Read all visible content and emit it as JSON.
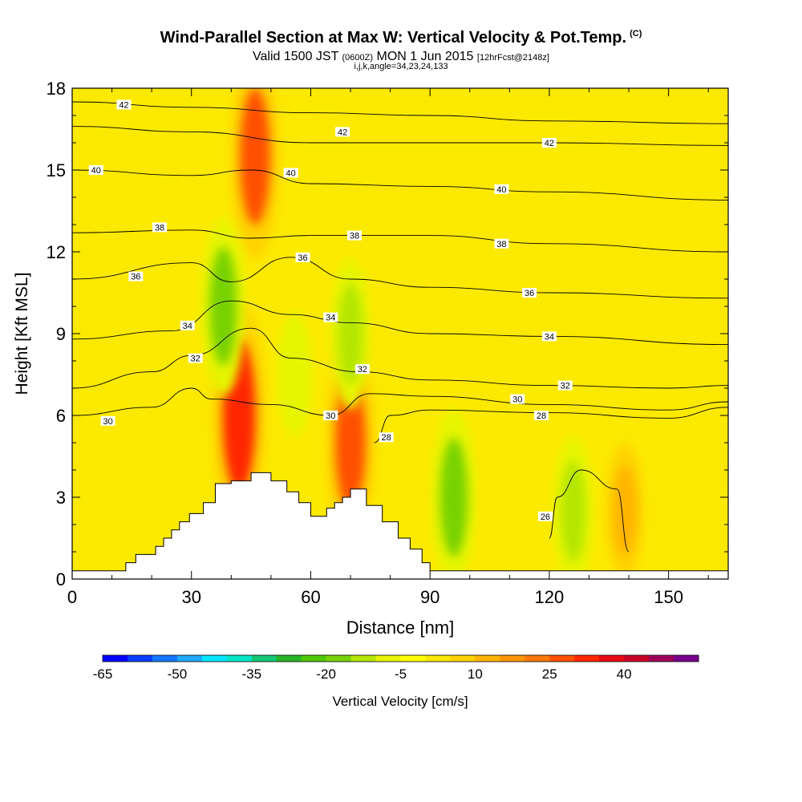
{
  "header": {
    "title": "Wind-Parallel Section at Max W: Vertical Velocity & Pot.Temp.",
    "copyright": "(C)",
    "subtitle_main": "Valid 1500 JST",
    "subtitle_utc": "(0600Z)",
    "subtitle_date": "MON 1 Jun 2015",
    "subtitle_fcst": "[12hrFcst@2148z]",
    "indices": "i,j,k,angle=34,23,24,133"
  },
  "chart_data": {
    "type": "heatmap",
    "xlabel": "Distance [nm]",
    "ylabel": "Height [Kft MSL]",
    "xlim": [
      0,
      165
    ],
    "ylim": [
      0,
      18
    ],
    "x_ticks": [
      "0",
      "30",
      "60",
      "90",
      "120",
      "150"
    ],
    "y_ticks": [
      "0",
      "3",
      "6",
      "9",
      "12",
      "15",
      "18"
    ],
    "colorbar": {
      "label": "Vertical Velocity [cm/s]",
      "range": [
        -65,
        55
      ],
      "step": 5,
      "tick_labels": [
        "-65",
        "-50",
        "-35",
        "-20",
        "-5",
        "10",
        "25",
        "40"
      ],
      "colors": [
        "#0000ff",
        "#0a3cff",
        "#1478ff",
        "#1eaaff",
        "#00e6ff",
        "#00e6c8",
        "#14c878",
        "#28b428",
        "#50c800",
        "#78d200",
        "#b4e600",
        "#e6f500",
        "#ffff00",
        "#fae600",
        "#ffd200",
        "#ffb400",
        "#ff9600",
        "#ff7800",
        "#ff5000",
        "#ff2800",
        "#e60a14",
        "#c80028",
        "#a0005a",
        "#78008c"
      ]
    },
    "terrain_kft": [
      [
        0,
        0.3
      ],
      [
        12,
        0.3
      ],
      [
        13.5,
        0.6
      ],
      [
        16,
        0.9
      ],
      [
        21,
        1.2
      ],
      [
        23,
        1.5
      ],
      [
        25,
        1.8
      ],
      [
        27,
        2.1
      ],
      [
        29.5,
        2.4
      ],
      [
        33,
        2.8
      ],
      [
        36,
        3.5
      ],
      [
        40,
        3.6
      ],
      [
        45,
        3.9
      ],
      [
        50,
        3.6
      ],
      [
        54,
        3.2
      ],
      [
        57,
        2.8
      ],
      [
        60,
        2.3
      ],
      [
        64,
        2.6
      ],
      [
        66,
        2.8
      ],
      [
        68,
        3.0
      ],
      [
        70,
        3.3
      ],
      [
        74,
        2.7
      ],
      [
        78,
        2.1
      ],
      [
        82,
        1.5
      ],
      [
        85,
        1.1
      ],
      [
        88,
        0.6
      ],
      [
        90,
        0.3
      ],
      [
        165,
        0.3
      ]
    ],
    "velocity_features": [
      {
        "x": 42,
        "y": 6.0,
        "value": 30
      },
      {
        "x": 46,
        "y": 15.5,
        "value": 25
      },
      {
        "x": 70,
        "y": 5.0,
        "value": 25
      },
      {
        "x": 38,
        "y": 10.0,
        "value": -20
      },
      {
        "x": 56,
        "y": 7.5,
        "value": -10
      },
      {
        "x": 70,
        "y": 9.0,
        "value": -15
      },
      {
        "x": 96,
        "y": 3.0,
        "value": -20
      },
      {
        "x": 126,
        "y": 2.5,
        "value": -15
      },
      {
        "x": 139,
        "y": 2.5,
        "value": 12
      }
    ],
    "theta_contours": [
      {
        "label": "42",
        "points": [
          [
            0,
            17.5
          ],
          [
            30,
            17.3
          ],
          [
            60,
            17.1
          ],
          [
            90,
            17.0
          ],
          [
            120,
            16.8
          ],
          [
            165,
            16.7
          ]
        ]
      },
      {
        "label": "42",
        "points": [
          [
            0,
            16.6
          ],
          [
            30,
            16.4
          ],
          [
            60,
            16.0
          ],
          [
            90,
            16.0
          ],
          [
            120,
            16.0
          ],
          [
            165,
            15.9
          ]
        ]
      },
      {
        "label": "40",
        "points": [
          [
            0,
            15.0
          ],
          [
            30,
            14.8
          ],
          [
            45,
            15.0
          ],
          [
            60,
            14.5
          ],
          [
            90,
            14.4
          ],
          [
            120,
            14.2
          ],
          [
            165,
            13.9
          ]
        ]
      },
      {
        "label": "38",
        "points": [
          [
            0,
            12.7
          ],
          [
            30,
            12.8
          ],
          [
            45,
            12.5
          ],
          [
            60,
            12.6
          ],
          [
            90,
            12.6
          ],
          [
            120,
            12.3
          ],
          [
            165,
            12.0
          ]
        ]
      },
      {
        "label": "36",
        "points": [
          [
            0,
            11.0
          ],
          [
            30,
            11.6
          ],
          [
            40,
            10.9
          ],
          [
            55,
            11.8
          ],
          [
            70,
            11.0
          ],
          [
            90,
            10.7
          ],
          [
            120,
            10.5
          ],
          [
            165,
            10.3
          ]
        ]
      },
      {
        "label": "34",
        "points": [
          [
            0,
            8.8
          ],
          [
            25,
            9.1
          ],
          [
            40,
            10.2
          ],
          [
            55,
            9.7
          ],
          [
            70,
            9.4
          ],
          [
            90,
            9.0
          ],
          [
            120,
            8.9
          ],
          [
            165,
            8.6
          ]
        ]
      },
      {
        "label": "32",
        "points": [
          [
            0,
            7.0
          ],
          [
            20,
            7.6
          ],
          [
            30,
            8.2
          ],
          [
            45,
            9.2
          ],
          [
            55,
            8.1
          ],
          [
            72,
            7.6
          ],
          [
            90,
            7.3
          ],
          [
            120,
            7.1
          ],
          [
            150,
            7.0
          ],
          [
            165,
            7.1
          ]
        ]
      },
      {
        "label": "30",
        "points": [
          [
            0,
            6.0
          ],
          [
            20,
            6.3
          ],
          [
            30,
            7.0
          ],
          [
            35,
            6.6
          ],
          [
            50,
            6.4
          ],
          [
            65,
            6.0
          ],
          [
            75,
            6.8
          ],
          [
            90,
            6.7
          ],
          [
            120,
            6.4
          ],
          [
            150,
            6.2
          ],
          [
            165,
            6.5
          ]
        ]
      },
      {
        "label": "28",
        "points": [
          [
            76,
            5.0
          ],
          [
            80,
            6.0
          ],
          [
            90,
            6.2
          ],
          [
            120,
            6.1
          ],
          [
            150,
            5.9
          ],
          [
            165,
            6.3
          ]
        ]
      },
      {
        "label": "26",
        "points": [
          [
            120,
            1.5
          ],
          [
            122,
            3.0
          ],
          [
            128,
            4.0
          ],
          [
            137,
            3.3
          ],
          [
            140,
            1.0
          ]
        ]
      }
    ],
    "contour_labels": [
      {
        "text": "42",
        "x": 13,
        "y": 17.4
      },
      {
        "text": "42",
        "x": 68,
        "y": 16.4
      },
      {
        "text": "42",
        "x": 120,
        "y": 16.0
      },
      {
        "text": "40",
        "x": 6,
        "y": 15.0
      },
      {
        "text": "40",
        "x": 55,
        "y": 14.9
      },
      {
        "text": "40",
        "x": 108,
        "y": 14.3
      },
      {
        "text": "38",
        "x": 22,
        "y": 12.9
      },
      {
        "text": "38",
        "x": 71,
        "y": 12.6
      },
      {
        "text": "38",
        "x": 108,
        "y": 12.3
      },
      {
        "text": "36",
        "x": 16,
        "y": 11.1
      },
      {
        "text": "36",
        "x": 58,
        "y": 11.8
      },
      {
        "text": "36",
        "x": 115,
        "y": 10.5
      },
      {
        "text": "34",
        "x": 29,
        "y": 9.3
      },
      {
        "text": "34",
        "x": 65,
        "y": 9.6
      },
      {
        "text": "34",
        "x": 120,
        "y": 8.9
      },
      {
        "text": "32",
        "x": 31,
        "y": 8.1
      },
      {
        "text": "32",
        "x": 73,
        "y": 7.7
      },
      {
        "text": "32",
        "x": 124,
        "y": 7.1
      },
      {
        "text": "30",
        "x": 9,
        "y": 5.8
      },
      {
        "text": "30",
        "x": 65,
        "y": 6.0
      },
      {
        "text": "30",
        "x": 112,
        "y": 6.6
      },
      {
        "text": "28",
        "x": 79,
        "y": 5.2
      },
      {
        "text": "28",
        "x": 118,
        "y": 6.0
      },
      {
        "text": "26",
        "x": 119,
        "y": 2.3
      }
    ]
  }
}
